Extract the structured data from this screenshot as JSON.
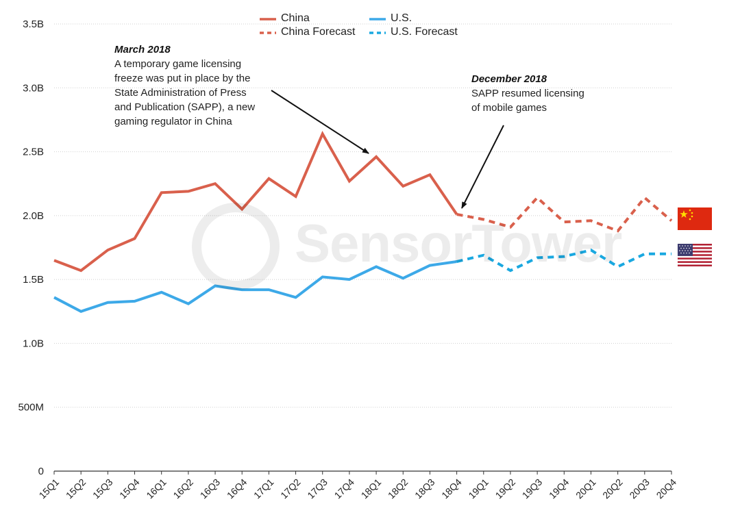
{
  "chart_data": {
    "type": "line",
    "categories": [
      "15Q1",
      "15Q2",
      "15Q3",
      "15Q4",
      "16Q1",
      "16Q2",
      "16Q3",
      "16Q4",
      "17Q1",
      "17Q2",
      "17Q3",
      "17Q4",
      "18Q1",
      "18Q2",
      "18Q3",
      "18Q4",
      "19Q1",
      "19Q2",
      "19Q3",
      "19Q4",
      "20Q1",
      "20Q2",
      "20Q3",
      "20Q4"
    ],
    "ylim": [
      0,
      3.5
    ],
    "yticks": [
      {
        "value": 0,
        "label": "0"
      },
      {
        "value": 0.5,
        "label": "500M"
      },
      {
        "value": 1.0,
        "label": "1.0B"
      },
      {
        "value": 1.5,
        "label": "1.5B"
      },
      {
        "value": 2.0,
        "label": "2.0B"
      },
      {
        "value": 2.5,
        "label": "2.5B"
      },
      {
        "value": 3.0,
        "label": "3.0B"
      },
      {
        "value": 3.5,
        "label": "3.5B"
      }
    ],
    "grid": true,
    "legend_position": "top-center",
    "series": [
      {
        "name": "China",
        "color": "#d9604c",
        "style": "solid",
        "values": [
          1.65,
          1.57,
          1.73,
          1.82,
          2.18,
          2.19,
          2.25,
          2.05,
          2.29,
          2.15,
          2.64,
          2.27,
          2.46,
          2.23,
          2.32,
          2.01,
          null,
          null,
          null,
          null,
          null,
          null,
          null,
          null
        ]
      },
      {
        "name": "China Forecast",
        "color": "#d9604c",
        "style": "dashed",
        "values": [
          null,
          null,
          null,
          null,
          null,
          null,
          null,
          null,
          null,
          null,
          null,
          null,
          null,
          null,
          null,
          2.01,
          1.97,
          1.91,
          2.14,
          1.95,
          1.96,
          1.88,
          2.14,
          1.96
        ]
      },
      {
        "name": "U.S.",
        "color": "#3da9e8",
        "style": "solid",
        "values": [
          1.36,
          1.25,
          1.32,
          1.33,
          1.4,
          1.31,
          1.45,
          1.42,
          1.42,
          1.36,
          1.52,
          1.5,
          1.6,
          1.51,
          1.61,
          1.64,
          null,
          null,
          null,
          null,
          null,
          null,
          null,
          null
        ]
      },
      {
        "name": "U.S. Forecast",
        "color": "#1aa8e0",
        "style": "dashed",
        "values": [
          null,
          null,
          null,
          null,
          null,
          null,
          null,
          null,
          null,
          null,
          null,
          null,
          null,
          null,
          null,
          1.64,
          1.69,
          1.57,
          1.67,
          1.68,
          1.73,
          1.6,
          1.7,
          1.7
        ]
      }
    ],
    "annotations": [
      {
        "title": "March 2018",
        "lines": [
          "A temporary game licensing",
          "freeze was put in place by the",
          "State Administration of Press",
          "and Publication (SAPP), a new",
          "gaming regulator in China"
        ]
      },
      {
        "title": "December 2018",
        "lines": [
          "SAPP resumed licensing",
          "of mobile games"
        ]
      }
    ]
  },
  "watermark_text": "SensorTower",
  "flags": [
    "china-flag-icon",
    "us-flag-icon"
  ]
}
